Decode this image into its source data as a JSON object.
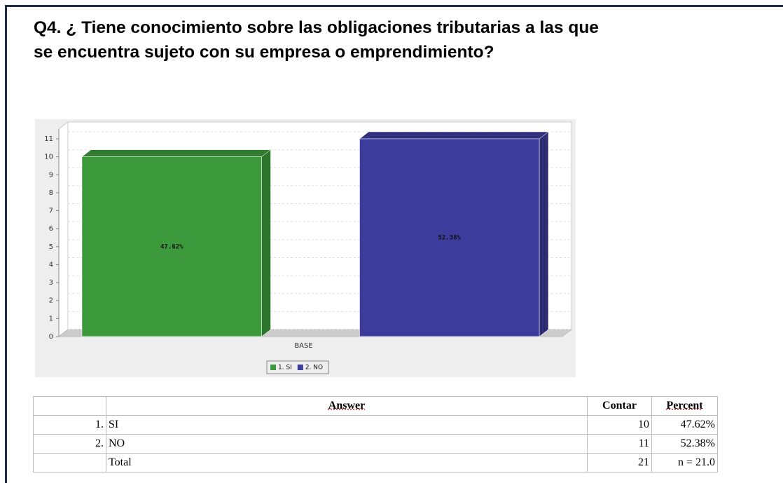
{
  "header": {
    "title_lines": [
      "Q4.  ¿ Tiene conocimiento sobre las obligaciones tributarias a las que",
      "se encuentra sujeto con su empresa o emprendimiento?"
    ]
  },
  "chart_data": {
    "type": "bar3d",
    "categories": [
      "BASE"
    ],
    "series": [
      {
        "name": "1. SI",
        "color": "#3c9a3c",
        "values": [
          10
        ],
        "value_labels": [
          "47.62%"
        ]
      },
      {
        "name": "2. NO",
        "color": "#3c3c9c",
        "values": [
          11
        ],
        "value_labels": [
          "52.38%"
        ]
      }
    ],
    "ylim": [
      0,
      11
    ],
    "yticks": [
      0,
      1,
      2,
      3,
      4,
      5,
      6,
      7,
      8,
      9,
      10,
      11
    ],
    "grid": true
  },
  "table": {
    "columns": [
      "Answer",
      "Contar",
      "Percent"
    ],
    "rows": [
      {
        "index": "1.",
        "answer": "SI",
        "count": 10,
        "percent": "47.62%"
      },
      {
        "index": "2.",
        "answer": "NO",
        "count": 11,
        "percent": "52.38%"
      },
      {
        "answer": "Total",
        "count": 21,
        "percent": "n = 21.0"
      }
    ]
  }
}
